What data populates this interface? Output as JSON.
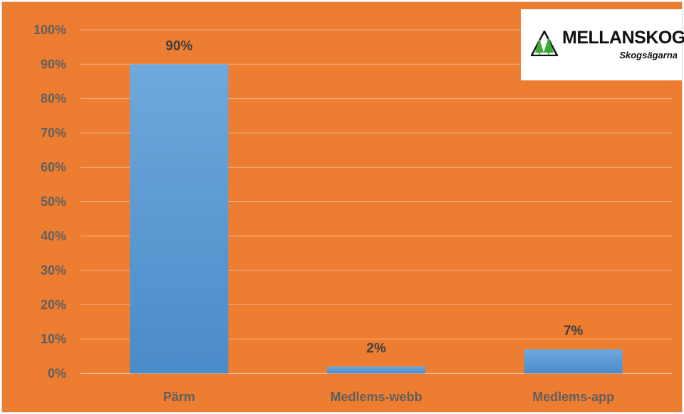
{
  "chart_data": {
    "type": "bar",
    "categories": [
      "Pärm",
      "Medlems-webb",
      "Medlems-app"
    ],
    "values": [
      90,
      2,
      7
    ],
    "data_labels": [
      "90%",
      "2%",
      "7%"
    ],
    "y_ticks": [
      "0%",
      "10%",
      "20%",
      "30%",
      "40%",
      "50%",
      "60%",
      "70%",
      "80%",
      "90%",
      "100%"
    ],
    "ylim": [
      0,
      100
    ],
    "unit": "%",
    "grid": true,
    "title": "",
    "xlabel": "",
    "ylabel": "",
    "colors": {
      "background": "#ED7D31",
      "bar": "#5B9BD5",
      "grid": "#F4B183",
      "text": "#5f5f5f",
      "data_label": "#404040"
    }
  },
  "logo": {
    "brand": "MELLANSKOG",
    "tagline": "Skogsägarna",
    "icon": "forest-triangle-logo-icon"
  }
}
